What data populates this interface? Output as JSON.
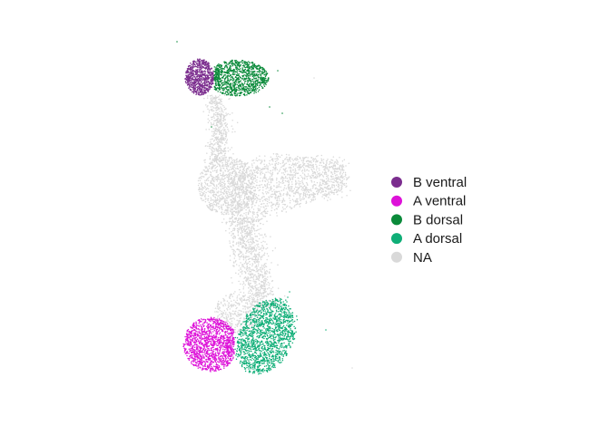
{
  "chart_data": {
    "type": "scatter",
    "title": "",
    "xlabel": "",
    "ylabel": "",
    "axes_visible": false,
    "grid": false,
    "legend_position": "right",
    "series": [
      {
        "name": "B ventral",
        "color": "#7b2d8e"
      },
      {
        "name": "A ventral",
        "color": "#dd11d8"
      },
      {
        "name": "B dorsal",
        "color": "#0a8a3a"
      },
      {
        "name": "A dorsal",
        "color": "#0fae77"
      },
      {
        "name": "NA",
        "color": "#d9d9d9"
      }
    ]
  }
}
